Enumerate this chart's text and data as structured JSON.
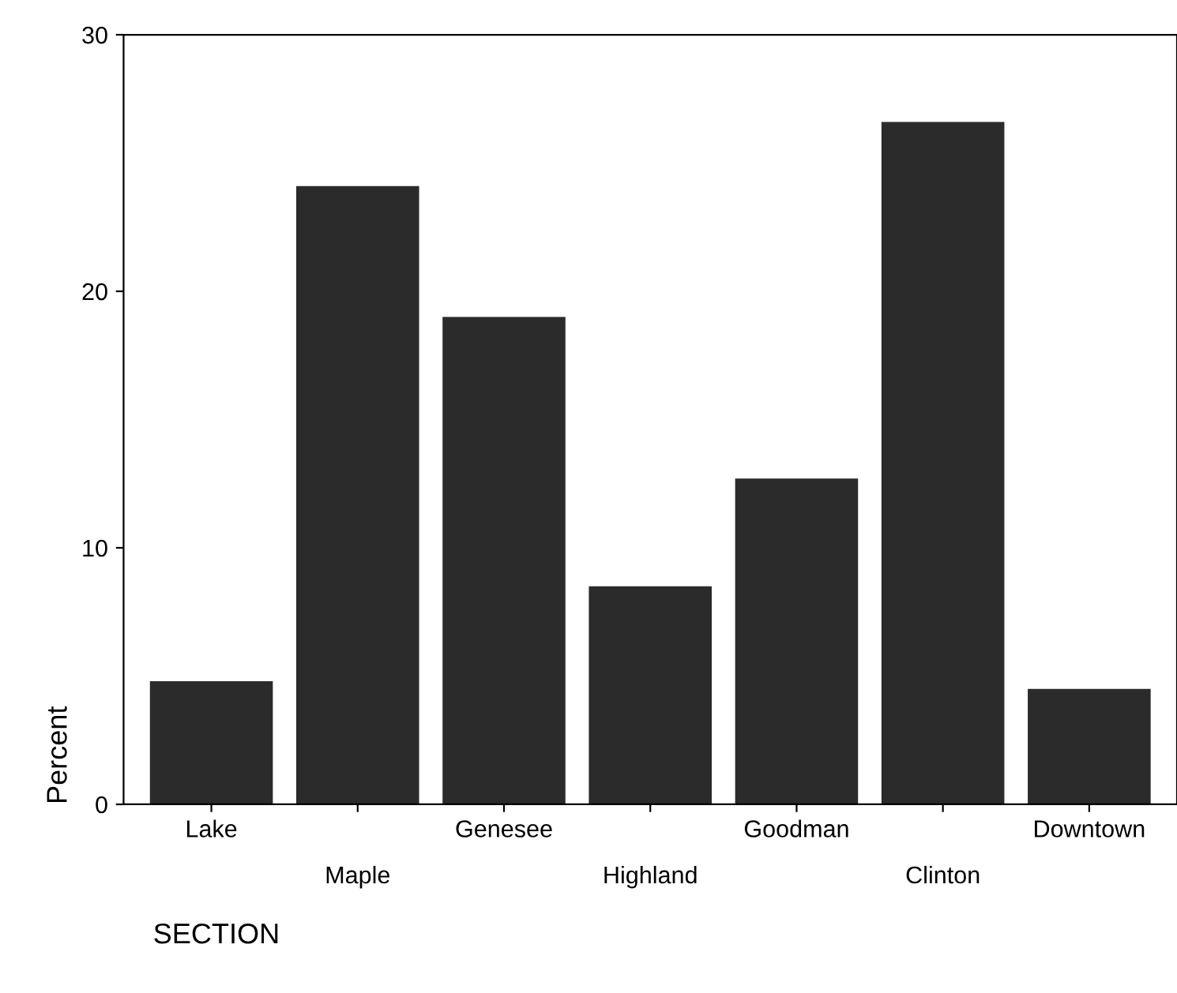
{
  "chart_data": {
    "type": "bar",
    "categories": [
      "Lake",
      "Maple",
      "Genesee",
      "Highland",
      "Goodman",
      "Clinton",
      "Downtown"
    ],
    "values": [
      4.8,
      24.1,
      19.0,
      8.5,
      12.7,
      26.6,
      4.5
    ],
    "color": "#2b2b2b",
    "ylabel": "Percent",
    "xlabel": "SECTION",
    "ylim": [
      0,
      30
    ],
    "yticks": [
      0,
      10,
      20,
      30
    ],
    "grid": false
  }
}
